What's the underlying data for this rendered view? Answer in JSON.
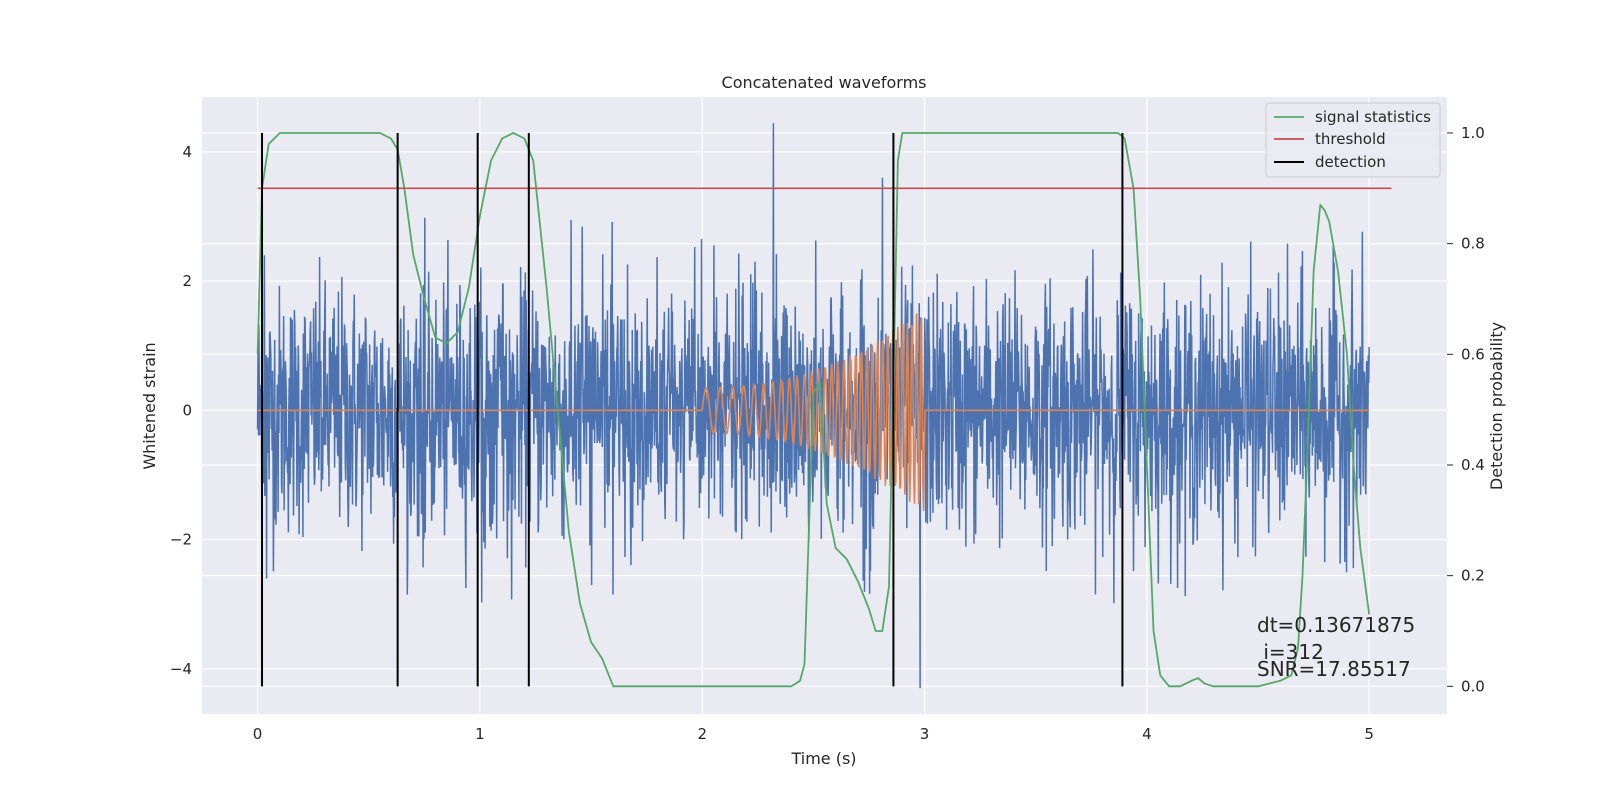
{
  "chart_data": {
    "type": "line",
    "title": "Concatenated waveforms",
    "xlabel": "Time (s)",
    "ylabel_left": "Whitened strain",
    "ylabel_right": "Detection probability",
    "xlim": [
      -0.25,
      5.35
    ],
    "ylim_left": [
      -4.7,
      4.85
    ],
    "ylim_right": [
      -0.05,
      1.065
    ],
    "x_ticks": [
      0,
      1,
      2,
      3,
      4,
      5
    ],
    "y_ticks_left": [
      -4,
      -2,
      0,
      2,
      4
    ],
    "y_ticks_right": [
      0.0,
      0.2,
      0.4,
      0.6,
      0.8,
      1.0
    ],
    "x_tick_labels": [
      "0",
      "1",
      "2",
      "3",
      "4",
      "5"
    ],
    "y_tick_labels_left": [
      "−4",
      "−2",
      "0",
      "2",
      "4"
    ],
    "y_tick_labels_right": [
      "0.0",
      "0.2",
      "0.4",
      "0.6",
      "0.8",
      "1.0"
    ],
    "grid": true,
    "legend_position": "top-right",
    "legend": [
      "signal statistics",
      "threshold",
      "detection"
    ],
    "colors": {
      "strain": "#4c72b0",
      "template": "#dd8452",
      "signal_statistics": "#55a868",
      "threshold": "#c44e52",
      "detection": "#000000",
      "background": "#eaeaf2",
      "grid": "#ffffff"
    },
    "series": [
      {
        "name": "strain",
        "axis": "left",
        "description_values": "noise band approx. ±1 dense, peaks up to ±3",
        "x_range": [
          0,
          5
        ],
        "spikes": [
          [
            2.32,
            4.45
          ],
          [
            2.81,
            3.6
          ],
          [
            2.98,
            -4.3
          ],
          [
            0.03,
            2.4
          ],
          [
            0.04,
            -2.6
          ]
        ]
      },
      {
        "name": "template",
        "axis": "left",
        "x_range": [
          0,
          5
        ],
        "chirp_start": 2.0,
        "chirp_end": 3.0,
        "start_amplitude": 0.35,
        "end_amplitude": 1.6
      },
      {
        "name": "signal statistics",
        "axis": "right",
        "x": [
          0.0,
          0.02,
          0.05,
          0.1,
          0.2,
          0.4,
          0.55,
          0.6,
          0.63,
          0.66,
          0.7,
          0.75,
          0.8,
          0.85,
          0.9,
          0.95,
          1.0,
          1.05,
          1.1,
          1.15,
          1.2,
          1.24,
          1.3,
          1.35,
          1.4,
          1.45,
          1.5,
          1.55,
          1.6,
          1.8,
          2.0,
          2.2,
          2.4,
          2.44,
          2.46,
          2.5,
          2.53,
          2.56,
          2.6,
          2.65,
          2.7,
          2.75,
          2.78,
          2.81,
          2.84,
          2.86,
          2.88,
          2.9,
          3.0,
          3.5,
          3.8,
          3.87,
          3.9,
          3.94,
          3.97,
          4.0,
          4.03,
          4.06,
          4.1,
          4.15,
          4.2,
          4.23,
          4.26,
          4.3,
          4.5,
          4.6,
          4.65,
          4.68,
          4.7,
          4.72,
          4.75,
          4.78,
          4.8,
          4.82,
          4.86,
          4.9,
          4.93,
          4.96,
          5.0
        ],
        "y": [
          0.6,
          0.9,
          0.98,
          1.0,
          1.0,
          1.0,
          1.0,
          0.99,
          0.97,
          0.9,
          0.78,
          0.7,
          0.63,
          0.62,
          0.64,
          0.72,
          0.85,
          0.95,
          0.99,
          1.0,
          0.99,
          0.95,
          0.72,
          0.5,
          0.28,
          0.15,
          0.08,
          0.05,
          0.0,
          0.0,
          0.0,
          0.0,
          0.0,
          0.01,
          0.04,
          0.53,
          0.55,
          0.33,
          0.25,
          0.23,
          0.19,
          0.14,
          0.1,
          0.1,
          0.18,
          0.55,
          0.95,
          1.0,
          1.0,
          1.0,
          1.0,
          1.0,
          0.99,
          0.9,
          0.7,
          0.4,
          0.1,
          0.02,
          0.0,
          0.0,
          0.01,
          0.015,
          0.005,
          0.0,
          0.0,
          0.01,
          0.02,
          0.07,
          0.2,
          0.4,
          0.75,
          0.87,
          0.86,
          0.84,
          0.75,
          0.6,
          0.4,
          0.25,
          0.13
        ]
      },
      {
        "name": "threshold",
        "axis": "right",
        "x": [
          0.0,
          5.1
        ],
        "y": [
          0.9,
          0.9
        ]
      },
      {
        "name": "detection",
        "axis": "right",
        "vlines": [
          0.02,
          0.63,
          0.99,
          1.22,
          2.86,
          3.89
        ]
      }
    ],
    "annotations": [
      "dt=0.13671875",
      " i=312",
      "SNR=17.85517"
    ]
  }
}
